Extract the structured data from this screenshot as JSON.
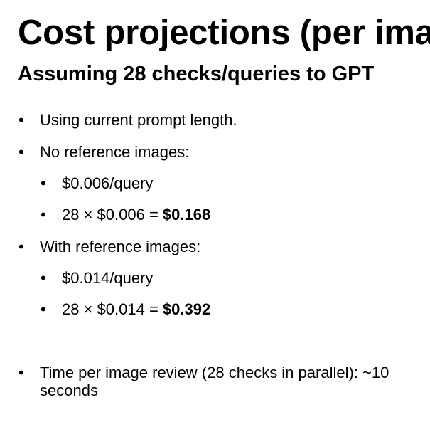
{
  "slide": {
    "title": "Cost projections (per image)",
    "subtitle": "Assuming 28 checks/queries to GPT",
    "bullet_glyph": "•",
    "items": [
      {
        "text": "Using current prompt length."
      },
      {
        "text": "No reference images:"
      },
      {
        "text": "$0.006/query"
      },
      {
        "prefix": "28 × $0.006 = ",
        "bold": "$0.168"
      },
      {
        "text": "With reference images:"
      },
      {
        "text": "$0.014/query"
      },
      {
        "prefix": "28 × $0.014 = ",
        "bold": "$0.392"
      },
      {
        "text": "Time per image review (28 checks in parallel): ~10 seconds"
      }
    ]
  }
}
